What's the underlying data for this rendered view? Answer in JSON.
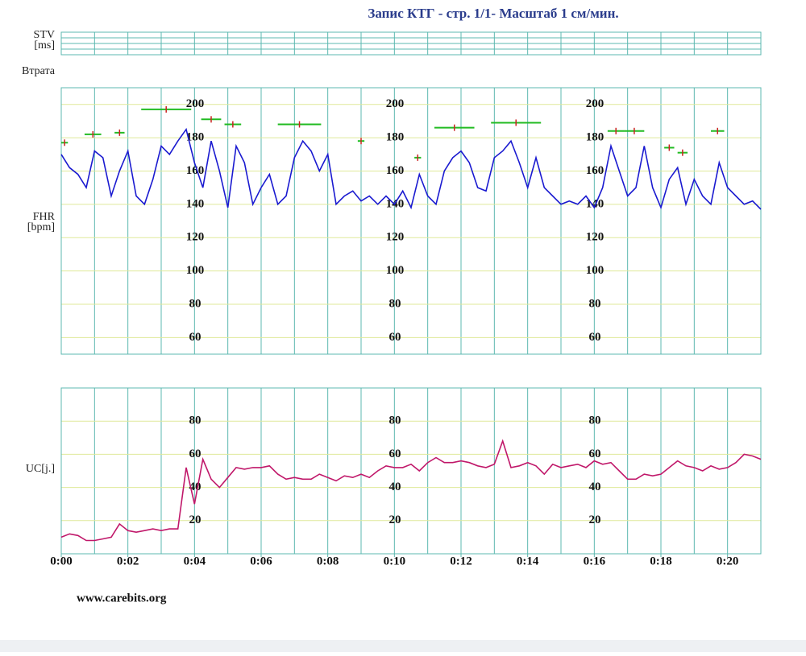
{
  "title": "Запис КТГ  - стр. 1/1- Масштаб 1 см/мин.",
  "stv_label": [
    "STV",
    "[ms]"
  ],
  "loss_label": "Втрата",
  "footer": "www.carebits.org",
  "chart_data": [
    {
      "type": "line",
      "name": "fhr",
      "ylabel": [
        "FHR",
        "[bpm]"
      ],
      "xlim": [
        0,
        21
      ],
      "ylim": [
        50,
        210
      ],
      "yticks": [
        60,
        80,
        100,
        120,
        140,
        160,
        180,
        200
      ],
      "xgrid": [
        0,
        1,
        2,
        3,
        4,
        5,
        6,
        7,
        8,
        9,
        10,
        11,
        12,
        13,
        14,
        15,
        16,
        17,
        18,
        19,
        20,
        21
      ],
      "x": [
        0,
        0.25,
        0.5,
        0.75,
        1,
        1.25,
        1.5,
        1.75,
        2,
        2.25,
        2.5,
        2.75,
        3,
        3.25,
        3.5,
        3.75,
        4,
        4.25,
        4.5,
        4.75,
        5,
        5.25,
        5.5,
        5.75,
        6,
        6.25,
        6.5,
        6.75,
        7,
        7.25,
        7.5,
        7.75,
        8,
        8.25,
        8.5,
        8.75,
        9,
        9.25,
        9.5,
        9.75,
        10,
        10.25,
        10.5,
        10.75,
        11,
        11.25,
        11.5,
        11.75,
        12,
        12.25,
        12.5,
        12.75,
        13,
        13.25,
        13.5,
        13.75,
        14,
        14.25,
        14.5,
        14.75,
        15,
        15.25,
        15.5,
        15.75,
        16,
        16.25,
        16.5,
        16.75,
        17,
        17.25,
        17.5,
        17.75,
        18,
        18.25,
        18.5,
        18.75,
        19,
        19.25,
        19.5,
        19.75,
        20,
        20.25,
        20.5,
        20.75,
        21
      ],
      "series": [
        {
          "color": "#1a1ad0",
          "values": [
            170,
            162,
            158,
            150,
            172,
            168,
            145,
            160,
            172,
            145,
            140,
            155,
            175,
            170,
            178,
            185,
            165,
            150,
            178,
            160,
            138,
            175,
            165,
            140,
            150,
            158,
            140,
            145,
            168,
            178,
            172,
            160,
            170,
            140,
            145,
            148,
            142,
            145,
            140,
            145,
            140,
            148,
            138,
            158,
            145,
            140,
            160,
            168,
            172,
            165,
            150,
            148,
            168,
            172,
            178,
            165,
            150,
            168,
            150,
            145,
            140,
            142,
            140,
            145,
            138,
            150,
            175,
            160,
            145,
            150,
            175,
            150,
            138,
            155,
            162,
            140,
            155,
            145,
            140,
            165,
            150,
            145,
            140,
            142,
            137
          ]
        }
      ],
      "events": {
        "color": "#22bb22",
        "cross_color": "#cc2222",
        "items": [
          {
            "start": 0,
            "end": 0.2,
            "value": 177
          },
          {
            "start": 0.7,
            "end": 1.2,
            "value": 182
          },
          {
            "start": 1.6,
            "end": 1.9,
            "value": 183
          },
          {
            "start": 2.4,
            "end": 3.9,
            "value": 197
          },
          {
            "start": 4.2,
            "end": 4.8,
            "value": 191
          },
          {
            "start": 4.9,
            "end": 5.4,
            "value": 188
          },
          {
            "start": 6.5,
            "end": 7.8,
            "value": 188
          },
          {
            "start": 8.9,
            "end": 9.1,
            "value": 178
          },
          {
            "start": 10.6,
            "end": 10.8,
            "value": 168
          },
          {
            "start": 11.2,
            "end": 12.4,
            "value": 186
          },
          {
            "start": 12.9,
            "end": 14.4,
            "value": 189
          },
          {
            "start": 16.4,
            "end": 16.9,
            "value": 184
          },
          {
            "start": 16.9,
            "end": 17.5,
            "value": 184
          },
          {
            "start": 18.1,
            "end": 18.4,
            "value": 174
          },
          {
            "start": 18.5,
            "end": 18.8,
            "value": 171
          },
          {
            "start": 19.5,
            "end": 19.9,
            "value": 184
          }
        ]
      }
    },
    {
      "type": "line",
      "name": "uc",
      "ylabel": [
        "UC[j.]"
      ],
      "xlim": [
        0,
        21
      ],
      "ylim": [
        0,
        100
      ],
      "yticks": [
        20,
        40,
        60,
        80
      ],
      "xticks": [
        {
          "value": 0,
          "label": "0:00"
        },
        {
          "value": 2,
          "label": "0:02"
        },
        {
          "value": 4,
          "label": "0:04"
        },
        {
          "value": 6,
          "label": "0:06"
        },
        {
          "value": 8,
          "label": "0:08"
        },
        {
          "value": 10,
          "label": "0:10"
        },
        {
          "value": 12,
          "label": "0:12"
        },
        {
          "value": 14,
          "label": "0:14"
        },
        {
          "value": 16,
          "label": "0:16"
        },
        {
          "value": 18,
          "label": "0:18"
        },
        {
          "value": 20,
          "label": "0:20"
        }
      ],
      "xgrid": [
        0,
        1,
        2,
        3,
        4,
        5,
        6,
        7,
        8,
        9,
        10,
        11,
        12,
        13,
        14,
        15,
        16,
        17,
        18,
        19,
        20,
        21
      ],
      "x": [
        0,
        0.25,
        0.5,
        0.75,
        1,
        1.25,
        1.5,
        1.75,
        2,
        2.25,
        2.5,
        2.75,
        3,
        3.25,
        3.5,
        3.75,
        4,
        4.25,
        4.5,
        4.75,
        5,
        5.25,
        5.5,
        5.75,
        6,
        6.25,
        6.5,
        6.75,
        7,
        7.25,
        7.5,
        7.75,
        8,
        8.25,
        8.5,
        8.75,
        9,
        9.25,
        9.5,
        9.75,
        10,
        10.25,
        10.5,
        10.75,
        11,
        11.25,
        11.5,
        11.75,
        12,
        12.25,
        12.5,
        12.75,
        13,
        13.25,
        13.5,
        13.75,
        14,
        14.25,
        14.5,
        14.75,
        15,
        15.25,
        15.5,
        15.75,
        16,
        16.25,
        16.5,
        16.75,
        17,
        17.25,
        17.5,
        17.75,
        18,
        18.25,
        18.5,
        18.75,
        19,
        19.25,
        19.5,
        19.75,
        20,
        20.25,
        20.5,
        20.75,
        21
      ],
      "series": [
        {
          "color": "#c0186a",
          "values": [
            10,
            12,
            11,
            8,
            8,
            9,
            10,
            18,
            14,
            13,
            14,
            15,
            14,
            15,
            15,
            52,
            30,
            57,
            45,
            40,
            46,
            52,
            51,
            52,
            52,
            53,
            48,
            45,
            46,
            45,
            45,
            48,
            46,
            44,
            47,
            46,
            48,
            46,
            50,
            53,
            52,
            52,
            54,
            50,
            55,
            58,
            55,
            55,
            56,
            55,
            53,
            52,
            54,
            68,
            52,
            53,
            55,
            53,
            48,
            54,
            52,
            53,
            54,
            52,
            56,
            54,
            55,
            50,
            45,
            45,
            48,
            47,
            48,
            52,
            56,
            53,
            52,
            50,
            53,
            51,
            52,
            55,
            60,
            59,
            57
          ]
        }
      ]
    }
  ]
}
